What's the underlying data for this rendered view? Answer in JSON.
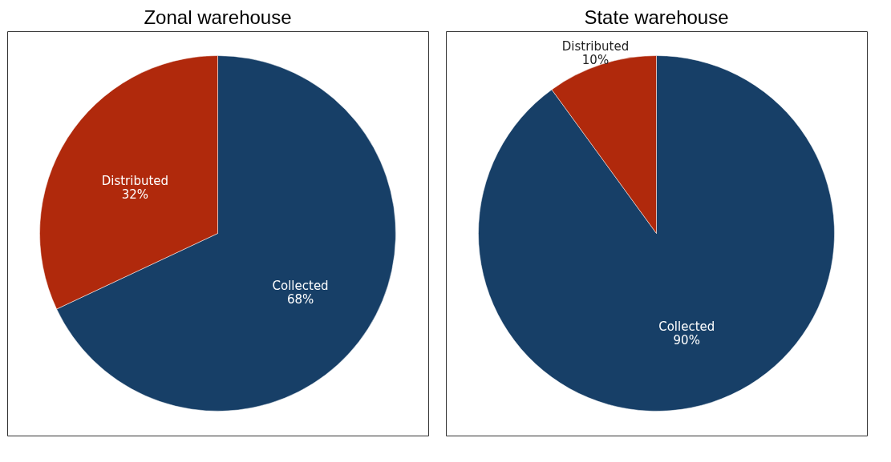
{
  "chart_data": [
    {
      "type": "pie",
      "title": "Zonal warehouse",
      "categories": [
        "Collected",
        "Distributed"
      ],
      "values": [
        68,
        32
      ],
      "colors": [
        "#173f67",
        "#b0290c"
      ],
      "value_labels": [
        "68%",
        "32%"
      ]
    },
    {
      "type": "pie",
      "title": "State warehouse",
      "categories": [
        "Collected",
        "Distributed"
      ],
      "values": [
        90,
        10
      ],
      "colors": [
        "#173f67",
        "#b0290c"
      ],
      "value_labels": [
        "90%",
        "10%"
      ]
    }
  ]
}
